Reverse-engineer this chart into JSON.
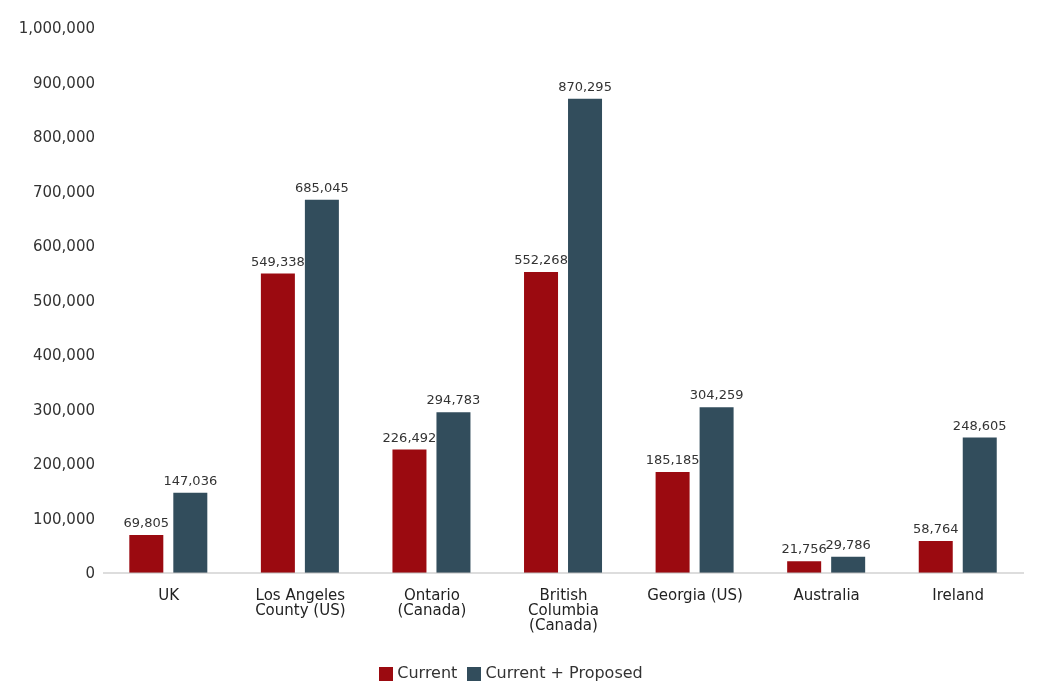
{
  "chart_data": {
    "type": "bar",
    "categories": [
      "UK",
      "Los Angeles County (US)",
      "Ontario (Canada)",
      "British Columbia (Canada)",
      "Georgia (US)",
      "Australia",
      "Ireland"
    ],
    "series": [
      {
        "name": "Current",
        "color": "#9b0a10",
        "values": [
          69805,
          549338,
          226492,
          552268,
          185185,
          21756,
          58764
        ],
        "value_labels": [
          "69,805",
          "549,338",
          "226,492",
          "552,268",
          "185,185",
          "21,756",
          "58,764"
        ]
      },
      {
        "name": "Current + Proposed",
        "color": "#324d5c",
        "values": [
          147036,
          685045,
          294783,
          870295,
          304259,
          29786,
          248605
        ],
        "value_labels": [
          "147,036",
          "685,045",
          "294,783",
          "870,295",
          "304,259",
          "29,786",
          "248,605"
        ]
      }
    ],
    "ylim": [
      0,
      1000000
    ],
    "yticks": [
      0,
      {
        "value": 100000,
        "label": "100,000"
      },
      {
        "value": 200000,
        "label": "200,000"
      },
      {
        "value": 300000,
        "label": "300,000"
      },
      {
        "value": 400000,
        "label": "400,000"
      },
      {
        "value": 500000,
        "label": "500,000"
      },
      {
        "value": 600000,
        "label": "600,000"
      },
      {
        "value": 700000,
        "label": "700,000"
      },
      {
        "value": 800000,
        "label": "800,000"
      },
      {
        "value": 900000,
        "label": "900,000"
      },
      {
        "value": 1000000,
        "label": "1,000,000"
      }
    ],
    "grid": false,
    "legend": "bottom"
  }
}
